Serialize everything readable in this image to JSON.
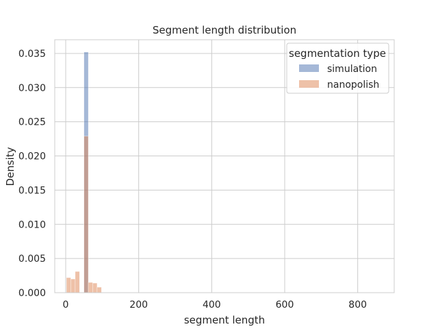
{
  "chart_data": {
    "type": "bar",
    "title": "Segment length distribution",
    "xlabel": "segment length",
    "ylabel": "Density",
    "xlim": [
      -30,
      900
    ],
    "ylim": [
      0,
      0.037
    ],
    "xticks": [
      0,
      200,
      400,
      600,
      800
    ],
    "yticks": [
      0.0,
      0.005,
      0.01,
      0.015,
      0.02,
      0.025,
      0.03,
      0.035
    ],
    "xtick_labels": [
      "0",
      "200",
      "400",
      "600",
      "800"
    ],
    "ytick_labels": [
      "0.000",
      "0.005",
      "0.010",
      "0.015",
      "0.020",
      "0.025",
      "0.030",
      "0.035"
    ],
    "grid": true,
    "bin_width": 12,
    "legend": {
      "title": "segmentation type",
      "placement": "top-right"
    },
    "series": [
      {
        "name": "simulation",
        "color": "#4c72b0",
        "bins": [
          {
            "x0": 50,
            "x1": 62,
            "density": 0.0352
          }
        ]
      },
      {
        "name": "nanopolish",
        "color": "#dd8452",
        "bins": [
          {
            "x0": 2,
            "x1": 14,
            "density": 0.0022
          },
          {
            "x0": 14,
            "x1": 26,
            "density": 0.002
          },
          {
            "x0": 26,
            "x1": 38,
            "density": 0.0031
          },
          {
            "x0": 38,
            "x1": 50,
            "density": 0.0
          },
          {
            "x0": 50,
            "x1": 62,
            "density": 0.0229
          },
          {
            "x0": 62,
            "x1": 74,
            "density": 0.0015
          },
          {
            "x0": 74,
            "x1": 86,
            "density": 0.0014
          },
          {
            "x0": 86,
            "x1": 98,
            "density": 0.0008
          }
        ]
      }
    ]
  }
}
